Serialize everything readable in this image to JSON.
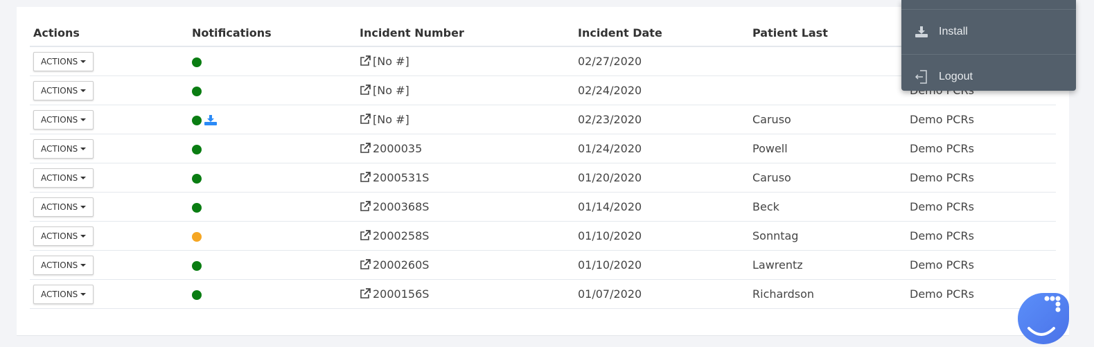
{
  "table": {
    "headers": [
      "Actions",
      "Notifications",
      "Incident Number",
      "Incident Date",
      "Patient Last",
      ""
    ],
    "action_label": "ACTIONS",
    "rows": [
      {
        "status": "green",
        "download": false,
        "incident": "[No #]",
        "date": "02/27/2020",
        "last": "",
        "group": ""
      },
      {
        "status": "green",
        "download": false,
        "incident": "[No #]",
        "date": "02/24/2020",
        "last": "",
        "group": "Demo PCRs"
      },
      {
        "status": "green",
        "download": true,
        "incident": "[No #]",
        "date": "02/23/2020",
        "last": "Caruso",
        "group": "Demo PCRs"
      },
      {
        "status": "green",
        "download": false,
        "incident": "2000035",
        "date": "01/24/2020",
        "last": "Powell",
        "group": "Demo PCRs"
      },
      {
        "status": "green",
        "download": false,
        "incident": "2000531S",
        "date": "01/20/2020",
        "last": "Caruso",
        "group": "Demo PCRs"
      },
      {
        "status": "green",
        "download": false,
        "incident": "2000368S",
        "date": "01/14/2020",
        "last": "Beck",
        "group": "Demo PCRs"
      },
      {
        "status": "orange",
        "download": false,
        "incident": "2000258S",
        "date": "01/10/2020",
        "last": "Sonntag",
        "group": "Demo PCRs"
      },
      {
        "status": "green",
        "download": false,
        "incident": "2000260S",
        "date": "01/10/2020",
        "last": "Lawrentz",
        "group": "Demo PCRs"
      },
      {
        "status": "green",
        "download": false,
        "incident": "2000156S",
        "date": "01/07/2020",
        "last": "Richardson",
        "group": "Demo PCRs"
      }
    ]
  },
  "colors": {
    "green": "#0a7d12",
    "orange": "#f5a623",
    "download": "#2a8af6",
    "menu_bg": "#535f6b"
  },
  "menu": {
    "install_label": "Install",
    "install_icon": "download-icon",
    "logout_label": "Logout",
    "logout_icon": "logout-icon"
  },
  "chat_widget": {
    "icon": "smile-chat-icon"
  }
}
